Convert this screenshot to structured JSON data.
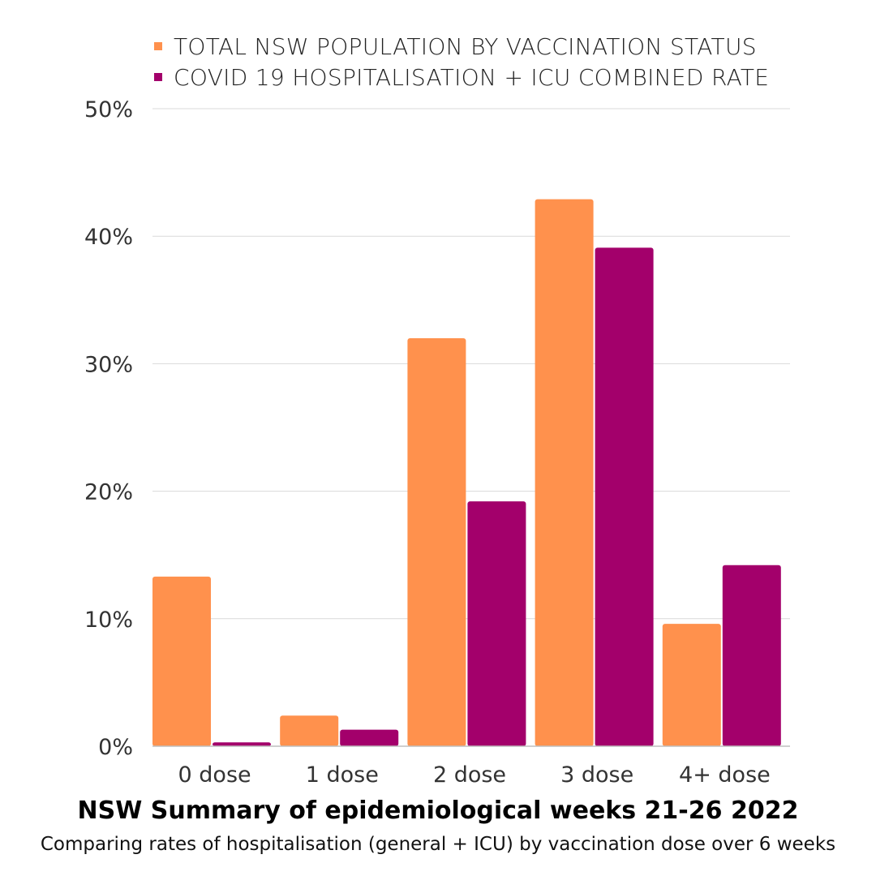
{
  "legend": {
    "items": [
      {
        "label": "TOTAL NSW POPULATION BY VACCINATION STATUS",
        "color": "#FF914D"
      },
      {
        "label": "COVID 19 HOSPITALISATION + ICU COMBINED RATE",
        "color": "#A3006B"
      }
    ]
  },
  "caption": {
    "title": "NSW Summary of epidemiological weeks 21-26 2022",
    "subtitle": "Comparing rates of hospitalisation (general + ICU) by vaccination dose over 6 weeks"
  },
  "chart_data": {
    "type": "bar",
    "categories": [
      "0 dose",
      "1 dose",
      "2 dose",
      "3 dose",
      "4+ dose"
    ],
    "series": [
      {
        "name": "TOTAL NSW POPULATION BY VACCINATION STATUS",
        "color": "#FF914D",
        "values": [
          13.3,
          2.4,
          32.0,
          42.9,
          9.6
        ]
      },
      {
        "name": "COVID 19 HOSPITALISATION + ICU COMBINED RATE",
        "color": "#A3006B",
        "values": [
          0.3,
          1.3,
          19.2,
          39.1,
          14.2
        ]
      }
    ],
    "title": "NSW Summary of epidemiological weeks 21-26 2022",
    "subtitle": "Comparing rates of hospitalisation (general + ICU) by vaccination dose over 6 weeks",
    "xlabel": "",
    "ylabel": "",
    "ylim": [
      0,
      50
    ],
    "yticks": [
      0,
      10,
      20,
      30,
      40,
      50
    ],
    "ytick_labels": [
      "0%",
      "10%",
      "20%",
      "30%",
      "40%",
      "50%"
    ],
    "grid": true,
    "legend_position": "top"
  }
}
